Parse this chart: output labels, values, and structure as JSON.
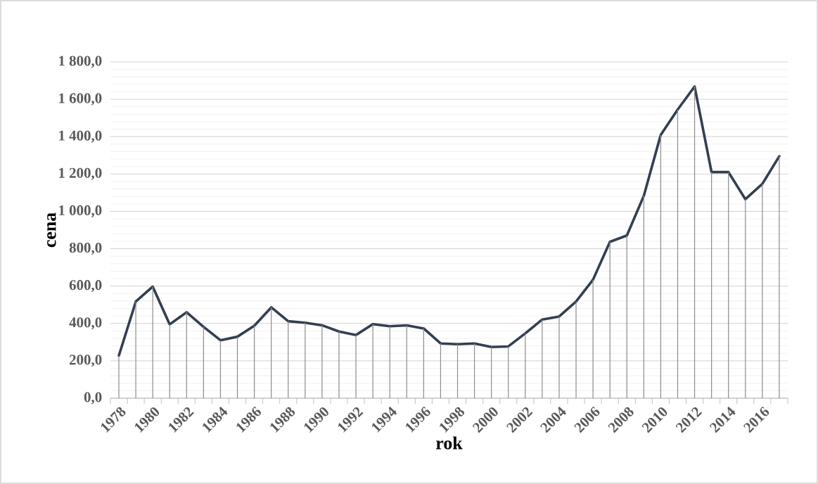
{
  "chart_data": {
    "type": "line",
    "xlabel": "rok",
    "ylabel": "cena",
    "categories": [
      "1978",
      null,
      "1980",
      null,
      "1982",
      null,
      "1984",
      null,
      "1986",
      null,
      "1988",
      null,
      "1990",
      null,
      "1992",
      null,
      "1994",
      null,
      "1996",
      null,
      "1998",
      null,
      "2000",
      null,
      "2002",
      null,
      "2004",
      null,
      "2006",
      null,
      "2008",
      null,
      "2010",
      null,
      "2012",
      null,
      "2014",
      null,
      "2016",
      null
    ],
    "series": [
      {
        "type": "bar",
        "color": "#8c8c8c",
        "values": [
          228,
          517,
          597,
          395,
          460,
          382,
          310,
          329,
          388,
          486,
          412,
          404,
          390,
          357,
          338,
          396,
          385,
          390,
          373,
          293,
          289,
          293,
          274,
          277,
          347,
          421,
          437,
          517,
          634,
          837,
          871,
          1083,
          1409,
          1545,
          1668,
          1210,
          1210,
          1065,
          1147,
          1295
        ]
      },
      {
        "color": "#333f50",
        "values": [
          228,
          517,
          597,
          395,
          460,
          382,
          310,
          329,
          388,
          486,
          412,
          404,
          390,
          357,
          338,
          396,
          385,
          390,
          373,
          293,
          289,
          293,
          274,
          277,
          347,
          421,
          437,
          517,
          634,
          837,
          871,
          1083,
          1409,
          1545,
          1668,
          1210,
          1210,
          1065,
          1147,
          1295
        ]
      }
    ],
    "ylim": [
      0,
      1800
    ],
    "yticks": [
      {
        "value": 0,
        "label": "0,0"
      },
      {
        "value": 200,
        "label": "200,0"
      },
      {
        "value": 400,
        "label": "400,0"
      },
      {
        "value": 600,
        "label": "600,0"
      },
      {
        "value": 800,
        "label": "800,0"
      },
      {
        "value": 1000,
        "label": "1 000,0"
      },
      {
        "value": 1200,
        "label": "1 200,0"
      },
      {
        "value": 1400,
        "label": "1 400,0"
      },
      {
        "value": 1600,
        "label": "1 600,0"
      },
      {
        "value": 1800,
        "label": "1 800,0"
      }
    ],
    "grid": "y"
  }
}
